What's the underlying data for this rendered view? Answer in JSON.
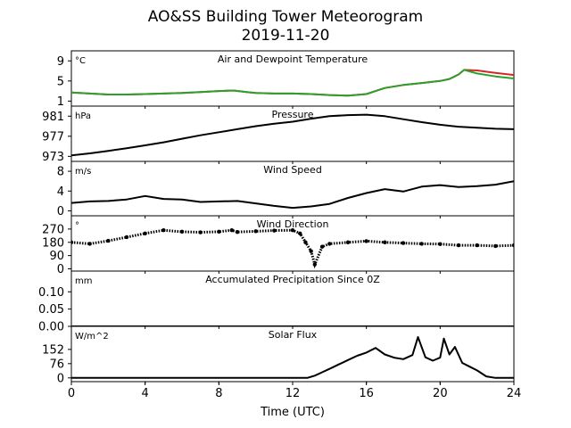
{
  "figure": {
    "title_line1": "AO&SS Building Tower Meteorogram",
    "title_line2": "2019-11-20",
    "xlabel": "Time (UTC)",
    "xlim": [
      0,
      24
    ],
    "xticks": [
      0,
      4,
      8,
      12,
      16,
      20,
      24
    ]
  },
  "chart_data": [
    {
      "type": "line",
      "title": "Air and Dewpoint Temperature",
      "unit": "°C",
      "ylim": [
        0,
        11
      ],
      "yticks": [
        1,
        5,
        9
      ],
      "series": [
        {
          "color": "#d62728",
          "x": [
            0,
            1,
            2,
            3,
            4,
            5,
            6,
            7,
            8,
            8.8,
            9.5,
            10,
            11,
            12,
            13,
            14,
            15,
            16,
            16.5,
            17,
            18,
            19,
            20,
            20.5,
            21,
            21.3,
            22,
            23,
            24
          ],
          "y": [
            2.7,
            2.5,
            2.3,
            2.3,
            2.4,
            2.5,
            2.6,
            2.8,
            3.0,
            3.1,
            2.8,
            2.6,
            2.5,
            2.5,
            2.4,
            2.2,
            2.1,
            2.4,
            3.0,
            3.6,
            4.2,
            4.6,
            5.0,
            5.4,
            6.3,
            7.2,
            7.1,
            6.6,
            6.2
          ]
        },
        {
          "color": "#2ca02c",
          "x": [
            0,
            1,
            2,
            3,
            4,
            5,
            6,
            7,
            8,
            8.8,
            9.5,
            10,
            11,
            12,
            13,
            14,
            15,
            16,
            16.5,
            17,
            18,
            19,
            20,
            20.5,
            21,
            21.3,
            22,
            23,
            24
          ],
          "y": [
            2.7,
            2.5,
            2.3,
            2.3,
            2.4,
            2.5,
            2.6,
            2.8,
            3.0,
            3.1,
            2.8,
            2.6,
            2.5,
            2.5,
            2.4,
            2.2,
            2.1,
            2.4,
            3.0,
            3.6,
            4.2,
            4.6,
            5.0,
            5.4,
            6.3,
            7.2,
            6.5,
            5.9,
            5.5
          ]
        }
      ]
    },
    {
      "type": "line",
      "title": "Pressure",
      "unit": "hPa",
      "ylim": [
        972,
        983
      ],
      "yticks": [
        973,
        977,
        981
      ],
      "series": [
        {
          "color": "#000000",
          "x": [
            0,
            1,
            2,
            3,
            4,
            5,
            6,
            7,
            8,
            9,
            10,
            11,
            12,
            13,
            14,
            15,
            16,
            17,
            18,
            19,
            20,
            21,
            22,
            23,
            24
          ],
          "y": [
            973.2,
            973.6,
            974.1,
            974.6,
            975.2,
            975.8,
            976.5,
            977.2,
            977.8,
            978.4,
            979.0,
            979.5,
            979.9,
            980.5,
            981.0,
            981.2,
            981.3,
            981.0,
            980.4,
            979.8,
            979.3,
            978.9,
            978.7,
            978.5,
            978.4
          ]
        }
      ]
    },
    {
      "type": "line",
      "title": "Wind Speed",
      "unit": "m/s",
      "ylim": [
        -1,
        10
      ],
      "yticks": [
        0,
        4,
        8
      ],
      "series": [
        {
          "color": "#000000",
          "x": [
            0,
            1,
            2,
            3,
            4,
            5,
            6,
            7,
            8,
            9,
            10,
            11,
            12,
            13,
            14,
            15,
            16,
            17,
            18,
            19,
            20,
            21,
            22,
            23,
            24
          ],
          "y": [
            1.6,
            1.9,
            2.0,
            2.3,
            3.0,
            2.4,
            2.3,
            1.8,
            1.9,
            2.0,
            1.5,
            1.0,
            0.6,
            0.9,
            1.4,
            2.6,
            3.6,
            4.4,
            3.9,
            4.9,
            5.2,
            4.8,
            5.0,
            5.3,
            6.0
          ]
        }
      ]
    },
    {
      "type": "scatter",
      "title": "Wind Direction",
      "unit": "°",
      "ylim": [
        -15,
        360
      ],
      "yticks": [
        0,
        90,
        180,
        270
      ],
      "series": [
        {
          "color": "#000000",
          "x": [
            0,
            1,
            2,
            3,
            4,
            5,
            6,
            7,
            8,
            8.7,
            9,
            10,
            11,
            12,
            12.4,
            12.7,
            13,
            13.2,
            13.6,
            14,
            15,
            16,
            17,
            18,
            19,
            20,
            21,
            22,
            23,
            24
          ],
          "y": [
            180,
            170,
            190,
            215,
            240,
            262,
            252,
            248,
            252,
            262,
            250,
            255,
            260,
            262,
            240,
            180,
            120,
            30,
            150,
            170,
            180,
            188,
            180,
            175,
            170,
            168,
            160,
            160,
            155,
            160
          ]
        }
      ]
    },
    {
      "type": "line",
      "title": "Accumulated Precipitation Since 0Z",
      "unit": "mm",
      "ylim": [
        0,
        0.16
      ],
      "yticks": [
        0.0,
        0.05,
        0.1
      ],
      "ytick_labels": [
        "0.00",
        "0.05",
        "0.10"
      ],
      "series": [
        {
          "color": "#000000",
          "x": [
            0,
            24
          ],
          "y": [
            0,
            0
          ]
        }
      ]
    },
    {
      "type": "line",
      "title": "Solar Flux",
      "unit": "W/m^2",
      "ylim": [
        -20,
        275
      ],
      "yticks": [
        0,
        76,
        152
      ],
      "series": [
        {
          "color": "#000000",
          "x": [
            0,
            12.8,
            13.2,
            13.6,
            14,
            14.5,
            15,
            15.5,
            16,
            16.5,
            17,
            17.5,
            18,
            18.5,
            18.8,
            19.2,
            19.6,
            20,
            20.2,
            20.5,
            20.8,
            21.2,
            21.6,
            22,
            22.5,
            23,
            24
          ],
          "y": [
            0,
            0,
            12,
            30,
            48,
            72,
            95,
            118,
            135,
            160,
            125,
            108,
            100,
            122,
            218,
            110,
            92,
            108,
            210,
            125,
            165,
            80,
            60,
            40,
            8,
            0,
            0
          ]
        }
      ]
    }
  ]
}
